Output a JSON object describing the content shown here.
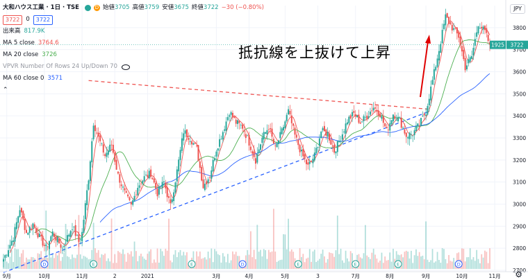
{
  "header": {
    "symbol": "大和ハウス工業 · 1日 · TSE",
    "open_label": "始値",
    "open": "3705",
    "high_label": "高値",
    "high": "3759",
    "low_label": "安値",
    "low": "3675",
    "close_label": "終値",
    "close": "3722",
    "change": "−30 (−0.80%)",
    "bid": "3722",
    "spread": "0",
    "ask": "3722"
  },
  "indicators": [
    {
      "label": "出来高",
      "value": "817.9K",
      "color": "#26a69a"
    },
    {
      "label": "MA 5 close",
      "value": "3764.6",
      "color": "#ef5350"
    },
    {
      "label": "MA 20 close",
      "value": "3726",
      "color": "#4caf50"
    },
    {
      "label": "VPVR Number Of Rows 24 Up/Down 70",
      "value": "",
      "color": "#9598a1"
    },
    {
      "label": "MA 60 close 0",
      "value": "3571",
      "color": "#2962ff"
    }
  ],
  "currency": "JPY",
  "annotation": "抵抗線を上抜けて上昇",
  "price_labels": {
    "countdown": "1925",
    "last": "3722"
  },
  "colors": {
    "up": "#26a69a",
    "down": "#ef5350",
    "ma5": "#ef5350",
    "ma20": "#4caf50",
    "ma60": "#2962ff",
    "resistance": "#ef5350",
    "support": "#2962ff",
    "arrow": "#e00000"
  },
  "chart_data": {
    "type": "candlestick",
    "title": "大和ハウス工業 · 1日 · TSE",
    "ylim": [
      2700,
      3900
    ],
    "y_ticks": [
      2700,
      2800,
      2900,
      3000,
      3100,
      3200,
      3300,
      3400,
      3500,
      3600,
      3700,
      3800
    ],
    "x_ticks": [
      "9月",
      "10月",
      "11月",
      "2",
      "2021",
      "3月",
      "4月",
      "5月",
      "3",
      "7月",
      "8月",
      "9月",
      "10月",
      "11月"
    ],
    "x_tick_index": [
      2,
      25,
      48,
      68,
      88,
      130,
      150,
      172,
      192,
      215,
      236,
      258,
      280,
      300
    ],
    "event_markers": [
      {
        "type": "D",
        "index": 25
      },
      {
        "type": "E",
        "index": 55
      },
      {
        "type": "E",
        "index": 115
      },
      {
        "type": "D",
        "index": 146
      },
      {
        "type": "E",
        "index": 180
      },
      {
        "type": "E",
        "index": 215
      },
      {
        "type": "E",
        "index": 241
      },
      {
        "type": "D",
        "index": 278
      }
    ],
    "close_anchors": [
      [
        0,
        2750
      ],
      [
        6,
        2850
      ],
      [
        10,
        2980
      ],
      [
        14,
        2870
      ],
      [
        18,
        2910
      ],
      [
        22,
        2850
      ],
      [
        26,
        2800
      ],
      [
        30,
        2870
      ],
      [
        36,
        2800
      ],
      [
        42,
        2900
      ],
      [
        46,
        2830
      ],
      [
        48,
        2870
      ],
      [
        52,
        3120
      ],
      [
        55,
        3370
      ],
      [
        58,
        3300
      ],
      [
        62,
        3220
      ],
      [
        66,
        3270
      ],
      [
        70,
        3130
      ],
      [
        74,
        3050
      ],
      [
        78,
        2990
      ],
      [
        82,
        3080
      ],
      [
        86,
        3120
      ],
      [
        90,
        3140
      ],
      [
        94,
        3050
      ],
      [
        98,
        3100
      ],
      [
        102,
        2990
      ],
      [
        106,
        3150
      ],
      [
        110,
        3330
      ],
      [
        114,
        3300
      ],
      [
        118,
        3250
      ],
      [
        122,
        3080
      ],
      [
        126,
        3130
      ],
      [
        130,
        3250
      ],
      [
        134,
        3330
      ],
      [
        138,
        3420
      ],
      [
        142,
        3370
      ],
      [
        146,
        3350
      ],
      [
        150,
        3280
      ],
      [
        154,
        3200
      ],
      [
        158,
        3300
      ],
      [
        162,
        3350
      ],
      [
        166,
        3250
      ],
      [
        170,
        3330
      ],
      [
        174,
        3420
      ],
      [
        178,
        3310
      ],
      [
        182,
        3230
      ],
      [
        186,
        3170
      ],
      [
        190,
        3220
      ],
      [
        194,
        3330
      ],
      [
        198,
        3320
      ],
      [
        202,
        3240
      ],
      [
        206,
        3300
      ],
      [
        210,
        3380
      ],
      [
        214,
        3410
      ],
      [
        218,
        3370
      ],
      [
        222,
        3400
      ],
      [
        226,
        3440
      ],
      [
        230,
        3410
      ],
      [
        234,
        3330
      ],
      [
        238,
        3410
      ],
      [
        242,
        3380
      ],
      [
        246,
        3310
      ],
      [
        250,
        3320
      ],
      [
        254,
        3360
      ],
      [
        258,
        3420
      ],
      [
        262,
        3560
      ],
      [
        266,
        3700
      ],
      [
        270,
        3850
      ],
      [
        274,
        3800
      ],
      [
        278,
        3760
      ],
      [
        282,
        3620
      ],
      [
        286,
        3670
      ],
      [
        290,
        3820
      ],
      [
        294,
        3780
      ],
      [
        297,
        3722
      ]
    ],
    "volume_range": [
      0,
      1.0
    ],
    "trendlines": [
      {
        "name": "resistance",
        "from": [
          52,
          3560
        ],
        "to": [
          260,
          3430
        ]
      },
      {
        "name": "support",
        "from": [
          0,
          2690
        ],
        "to": [
          260,
          3420
        ]
      }
    ]
  }
}
